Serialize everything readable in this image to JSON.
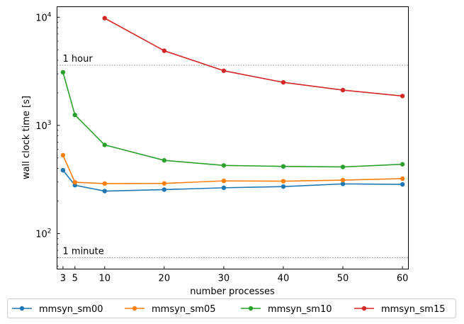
{
  "chart_data": {
    "type": "line",
    "title": "",
    "xlabel": "number processes",
    "ylabel": "wall clock time [s]",
    "yscale": "log",
    "xlim": [
      2,
      61
    ],
    "ylim": [
      47,
      12500
    ],
    "x_ticks": [
      3,
      5,
      10,
      20,
      30,
      40,
      50,
      60
    ],
    "y_ticks": [
      {
        "value": 100,
        "label": "10",
        "exp": "2"
      },
      {
        "value": 1000,
        "label": "10",
        "exp": "3"
      },
      {
        "value": 10000,
        "label": "10",
        "exp": "4"
      }
    ],
    "reference_lines": [
      {
        "value": 3600,
        "label": "1 hour",
        "color": "#808080"
      },
      {
        "value": 60,
        "label": "1 minute",
        "color": "#808080"
      }
    ],
    "legend_position": "bottom, outside",
    "grid": false,
    "series": [
      {
        "name": "mmsyn_sm00",
        "color": "#1f77b4",
        "x": [
          3,
          5,
          10,
          20,
          30,
          40,
          50,
          60
        ],
        "y": [
          385,
          280,
          247,
          255,
          265,
          272,
          288,
          285
        ]
      },
      {
        "name": "mmsyn_sm05",
        "color": "#ff7f0e",
        "x": [
          3,
          5,
          10,
          20,
          30,
          40,
          50,
          60
        ],
        "y": [
          530,
          298,
          290,
          291,
          307,
          305,
          312,
          322
        ]
      },
      {
        "name": "mmsyn_sm10",
        "color": "#2ca02c",
        "x": [
          3,
          5,
          10,
          20,
          30,
          40,
          50,
          60
        ],
        "y": [
          3100,
          1250,
          660,
          475,
          427,
          418,
          413,
          437
        ]
      },
      {
        "name": "mmsyn_sm15",
        "color": "#d62728",
        "x": [
          10,
          20,
          30,
          40,
          50,
          60
        ],
        "y": [
          9800,
          4900,
          3200,
          2500,
          2120,
          1870
        ]
      }
    ]
  }
}
